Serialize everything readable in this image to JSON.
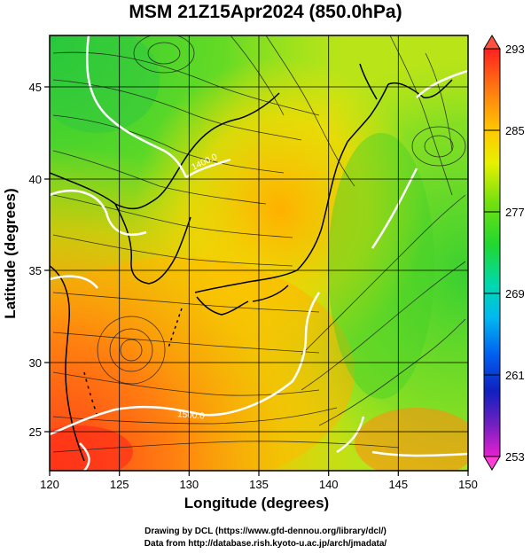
{
  "title": "MSM 21Z15Apr2024 (850.0hPa)",
  "xlabel": "Longitude (degrees)",
  "ylabel": "Latitude  (degrees)",
  "x_ticks": [
    "120",
    "125",
    "130",
    "135",
    "140",
    "145",
    "150"
  ],
  "y_ticks": [
    "25",
    "30",
    "35",
    "40",
    "45"
  ],
  "colorbar": {
    "max": "293",
    "min": "253",
    "labels": [
      "285",
      "277",
      "269",
      "261"
    ],
    "colors": [
      "#ff2020",
      "#ff6a10",
      "#ffb000",
      "#ffee00",
      "#a8e800",
      "#2ad81c",
      "#00d890",
      "#00c8e8",
      "#0080ff",
      "#0030d8",
      "#2010b0",
      "#8020c0",
      "#e020c8"
    ]
  },
  "contour_labels": [
    "1400.0",
    "1500.0"
  ],
  "credits": [
    "Drawing by DCL (https://www.gfd-dennou.org/library/dcl/)",
    "Data from http://database.rish.kyoto-u.ac.jp/arch/jmadata/"
  ]
}
